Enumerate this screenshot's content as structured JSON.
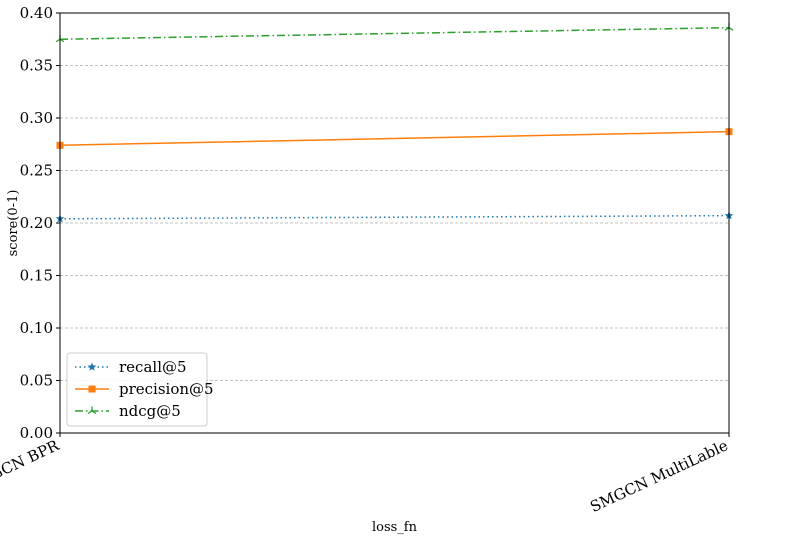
{
  "chart_data": {
    "type": "line",
    "title": "",
    "xlabel": "loss_fn",
    "ylabel": "score(0-1)",
    "categories": [
      "SMGCN BPR",
      "SMGCN MultiLable"
    ],
    "ylim": [
      0.0,
      0.4
    ],
    "yticks": [
      "0.00",
      "0.05",
      "0.10",
      "0.15",
      "0.20",
      "0.25",
      "0.30",
      "0.35",
      "0.40"
    ],
    "grid": "horizontal-dashed",
    "legend_position": "lower-left",
    "series": [
      {
        "name": "recall@5",
        "values": [
          0.204,
          0.207
        ],
        "color": "#1f77b4",
        "style": "dotted",
        "marker": "star-icon"
      },
      {
        "name": "precision@5",
        "values": [
          0.274,
          0.287
        ],
        "color": "#ff7f0e",
        "style": "solid",
        "marker": "square-icon"
      },
      {
        "name": "ndcg@5",
        "values": [
          0.375,
          0.386
        ],
        "color": "#2ca02c",
        "style": "dashdot",
        "marker": "tri-icon"
      }
    ]
  }
}
